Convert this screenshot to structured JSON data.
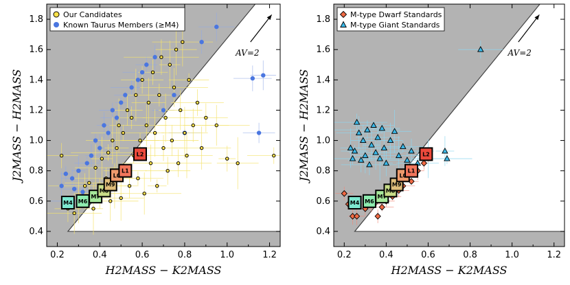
{
  "chart_data": [
    {
      "type": "scatter",
      "panel": "left",
      "xlabel": "H2MASS − K2MASS",
      "ylabel": "J2MASS − H2MASS",
      "xlim": [
        0.15,
        1.25
      ],
      "ylim": [
        0.3,
        1.9
      ],
      "xticks": [
        "0.2",
        "0.4",
        "0.6",
        "0.8",
        "1.0",
        "1.2"
      ],
      "yticks": [
        "0.4",
        "0.6",
        "0.8",
        "1.0",
        "1.2",
        "1.4",
        "1.6",
        "1.8"
      ],
      "legend": {
        "position": "top-left",
        "entries": [
          "Our Candidates",
          "Known Taurus Members (≥M4)"
        ]
      },
      "annotation": "AV=2",
      "spectral_types": [
        "M4",
        "M6",
        "M7",
        "M8",
        "M9",
        "L0",
        "L1",
        "L2"
      ],
      "candidates_points_approx": [
        [
          0.22,
          0.9
        ],
        [
          0.25,
          0.55
        ],
        [
          0.28,
          0.52
        ],
        [
          0.3,
          0.62
        ],
        [
          0.33,
          0.7
        ],
        [
          0.35,
          0.72
        ],
        [
          0.37,
          0.55
        ],
        [
          0.38,
          0.82
        ],
        [
          0.4,
          0.65
        ],
        [
          0.41,
          0.88
        ],
        [
          0.43,
          0.75
        ],
        [
          0.44,
          0.92
        ],
        [
          0.45,
          0.6
        ],
        [
          0.46,
          1.0
        ],
        [
          0.47,
          0.7
        ],
        [
          0.48,
          0.95
        ],
        [
          0.49,
          1.1
        ],
        [
          0.5,
          0.62
        ],
        [
          0.51,
          1.05
        ],
        [
          0.52,
          0.8
        ],
        [
          0.53,
          1.2
        ],
        [
          0.54,
          0.7
        ],
        [
          0.55,
          1.15
        ],
        [
          0.56,
          0.9
        ],
        [
          0.57,
          1.3
        ],
        [
          0.58,
          0.75
        ],
        [
          0.59,
          1.0
        ],
        [
          0.6,
          1.4
        ],
        [
          0.61,
          0.65
        ],
        [
          0.62,
          1.1
        ],
        [
          0.63,
          1.25
        ],
        [
          0.64,
          0.85
        ],
        [
          0.65,
          1.45
        ],
        [
          0.66,
          1.05
        ],
        [
          0.67,
          0.7
        ],
        [
          0.68,
          1.3
        ],
        [
          0.69,
          1.55
        ],
        [
          0.7,
          0.95
        ],
        [
          0.71,
          1.15
        ],
        [
          0.72,
          0.8
        ],
        [
          0.73,
          1.5
        ],
        [
          0.74,
          1.0
        ],
        [
          0.75,
          1.35
        ],
        [
          0.76,
          1.6
        ],
        [
          0.77,
          0.85
        ],
        [
          0.78,
          1.2
        ],
        [
          0.79,
          1.65
        ],
        [
          0.8,
          1.05
        ],
        [
          0.81,
          0.9
        ],
        [
          0.82,
          1.4
        ],
        [
          0.84,
          1.1
        ],
        [
          0.86,
          1.25
        ],
        [
          0.88,
          0.95
        ],
        [
          0.9,
          1.15
        ],
        [
          0.95,
          1.1
        ],
        [
          1.0,
          0.88
        ],
        [
          1.05,
          0.85
        ],
        [
          1.22,
          0.9
        ]
      ],
      "known_members_points_approx": [
        [
          0.22,
          0.7
        ],
        [
          0.24,
          0.78
        ],
        [
          0.25,
          0.6
        ],
        [
          0.27,
          0.75
        ],
        [
          0.28,
          0.68
        ],
        [
          0.3,
          0.8
        ],
        [
          0.32,
          0.66
        ],
        [
          0.34,
          0.85
        ],
        [
          0.36,
          0.9
        ],
        [
          0.38,
          1.0
        ],
        [
          0.4,
          0.95
        ],
        [
          0.42,
          1.1
        ],
        [
          0.44,
          1.05
        ],
        [
          0.46,
          1.2
        ],
        [
          0.48,
          1.15
        ],
        [
          0.5,
          1.25
        ],
        [
          0.52,
          1.3
        ],
        [
          0.55,
          1.35
        ],
        [
          0.58,
          1.4
        ],
        [
          0.6,
          1.45
        ],
        [
          0.62,
          1.5
        ],
        [
          0.66,
          1.55
        ],
        [
          0.7,
          1.2
        ],
        [
          0.75,
          1.3
        ],
        [
          0.8,
          1.05
        ],
        [
          0.88,
          1.65
        ],
        [
          0.95,
          1.75
        ],
        [
          1.12,
          1.41
        ],
        [
          1.15,
          1.05
        ],
        [
          1.17,
          1.43
        ]
      ]
    },
    {
      "type": "scatter",
      "panel": "right",
      "xlabel": "H2MASS − K2MASS",
      "ylabel": "J2MASS − H2MASS",
      "xlim": [
        0.15,
        1.25
      ],
      "ylim": [
        0.3,
        1.9
      ],
      "xticks": [
        "0.2",
        "0.4",
        "0.6",
        "0.8",
        "1.0",
        "1.2"
      ],
      "yticks": [
        "0.4",
        "0.6",
        "0.8",
        "1.0",
        "1.2",
        "1.4",
        "1.6",
        "1.8"
      ],
      "legend": {
        "position": "top-left",
        "entries": [
          "M-type Dwarf Standards",
          "M-type Giant Standards"
        ]
      },
      "annotation": "AV=2",
      "spectral_types": [
        "M4",
        "M6",
        "M7",
        "M8",
        "M9",
        "L0",
        "L1",
        "L2"
      ],
      "dwarf_points_approx": [
        [
          0.2,
          0.65
        ],
        [
          0.22,
          0.58
        ],
        [
          0.24,
          0.5
        ],
        [
          0.26,
          0.5
        ],
        [
          0.3,
          0.55
        ],
        [
          0.33,
          0.58
        ],
        [
          0.36,
          0.5
        ],
        [
          0.38,
          0.56
        ],
        [
          0.4,
          0.6
        ],
        [
          0.43,
          0.63
        ],
        [
          0.46,
          0.67
        ],
        [
          0.48,
          0.7
        ],
        [
          0.52,
          0.73
        ],
        [
          0.55,
          0.8
        ],
        [
          0.58,
          0.85
        ],
        [
          0.6,
          0.9
        ]
      ],
      "giant_points_approx": [
        [
          0.23,
          0.95
        ],
        [
          0.24,
          0.88
        ],
        [
          0.25,
          0.93
        ],
        [
          0.26,
          1.12
        ],
        [
          0.27,
          1.05
        ],
        [
          0.28,
          0.87
        ],
        [
          0.29,
          1.0
        ],
        [
          0.3,
          0.9
        ],
        [
          0.31,
          1.07
        ],
        [
          0.32,
          0.84
        ],
        [
          0.33,
          0.97
        ],
        [
          0.34,
          1.1
        ],
        [
          0.35,
          0.92
        ],
        [
          0.36,
          1.02
        ],
        [
          0.37,
          0.88
        ],
        [
          0.38,
          1.08
        ],
        [
          0.39,
          0.95
        ],
        [
          0.4,
          0.85
        ],
        [
          0.42,
          1.0
        ],
        [
          0.44,
          1.06
        ],
        [
          0.46,
          0.9
        ],
        [
          0.48,
          0.96
        ],
        [
          0.5,
          0.87
        ],
        [
          0.52,
          0.93
        ],
        [
          0.55,
          0.85
        ],
        [
          0.6,
          0.88
        ],
        [
          0.68,
          0.93
        ],
        [
          0.69,
          0.88
        ],
        [
          0.85,
          1.6
        ]
      ]
    }
  ]
}
